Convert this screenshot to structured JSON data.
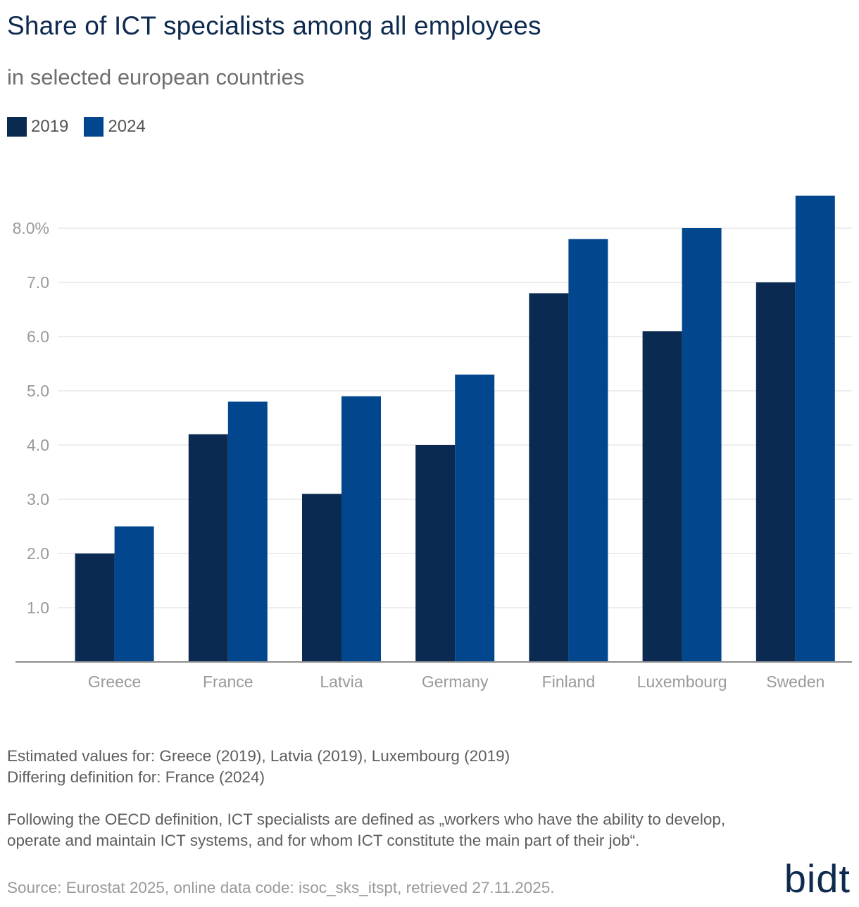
{
  "header": {
    "title": "Share of ICT specialists among all employees",
    "subtitle": "in selected european countries"
  },
  "legend": [
    {
      "label": "2019",
      "color": "#0b2a52"
    },
    {
      "label": "2024",
      "color": "#02478d"
    }
  ],
  "chart_data": {
    "type": "bar",
    "title": "Share of ICT specialists among all employees",
    "subtitle": "in selected european countries",
    "categories": [
      "Greece",
      "France",
      "Latvia",
      "Germany",
      "Finland",
      "Luxembourg",
      "Sweden"
    ],
    "series": [
      {
        "name": "2019",
        "color": "#0b2a52",
        "values": [
          2.0,
          4.2,
          3.1,
          4.0,
          6.8,
          6.1,
          7.0
        ]
      },
      {
        "name": "2024",
        "color": "#02478d",
        "values": [
          2.5,
          4.8,
          4.9,
          5.3,
          7.8,
          8.0,
          8.6
        ]
      }
    ],
    "ylim": [
      0,
      8.6
    ],
    "yticks": [
      1,
      2,
      3,
      4,
      5,
      6,
      7,
      8
    ],
    "ytick_labels": [
      "1.0",
      "2.0",
      "3.0",
      "4.0",
      "5.0",
      "6.0",
      "7.0",
      "8.0%"
    ],
    "xlabel": "",
    "ylabel": "",
    "grid": true,
    "legend_position": "top-left"
  },
  "footer": {
    "note1": "Estimated values for: Greece (2019), Latvia (2019), Luxembourg (2019)",
    "note2": "Differing definition for: France (2024)",
    "definition": "Following the OECD definition, ICT specialists are defined as „workers who have the ability to develop, operate and maintain ICT systems, and for whom ICT constitute the main part of their job“.",
    "source": "Source: Eurostat 2025, online data code: isoc_sks_itspt, retrieved 27.11.2025.",
    "logo": "bidt"
  }
}
